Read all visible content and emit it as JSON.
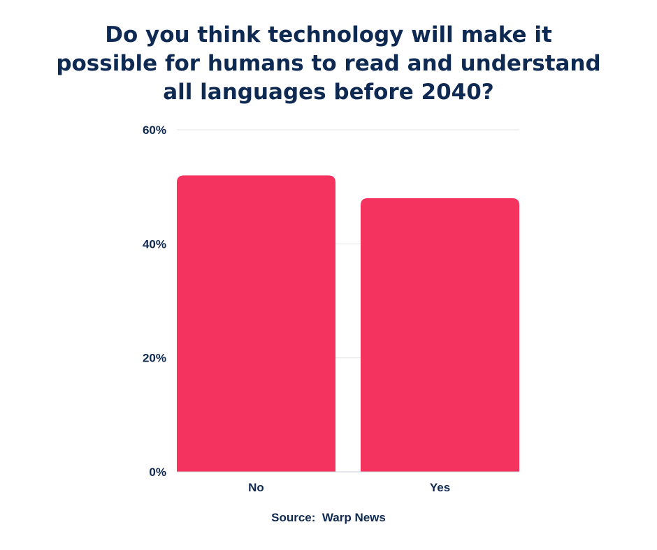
{
  "chart_data": {
    "type": "bar",
    "title": "Do you think technology will make it\npossible for humans to read and understand\nall languages before 2040?",
    "categories": [
      "No",
      "Yes"
    ],
    "values": [
      52,
      48
    ],
    "ylim": [
      0,
      60
    ],
    "yticks": [
      0,
      20,
      40,
      60
    ],
    "ytick_labels": [
      "0%",
      "20%",
      "40%",
      "60%"
    ],
    "xlabel": "",
    "ylabel": "",
    "grid": true,
    "bar_color": "#f4345f",
    "axis_text_color": "#10294f",
    "grid_color": "#e6e6e6"
  },
  "source": {
    "label": "Source:",
    "value": "Warp News"
  }
}
